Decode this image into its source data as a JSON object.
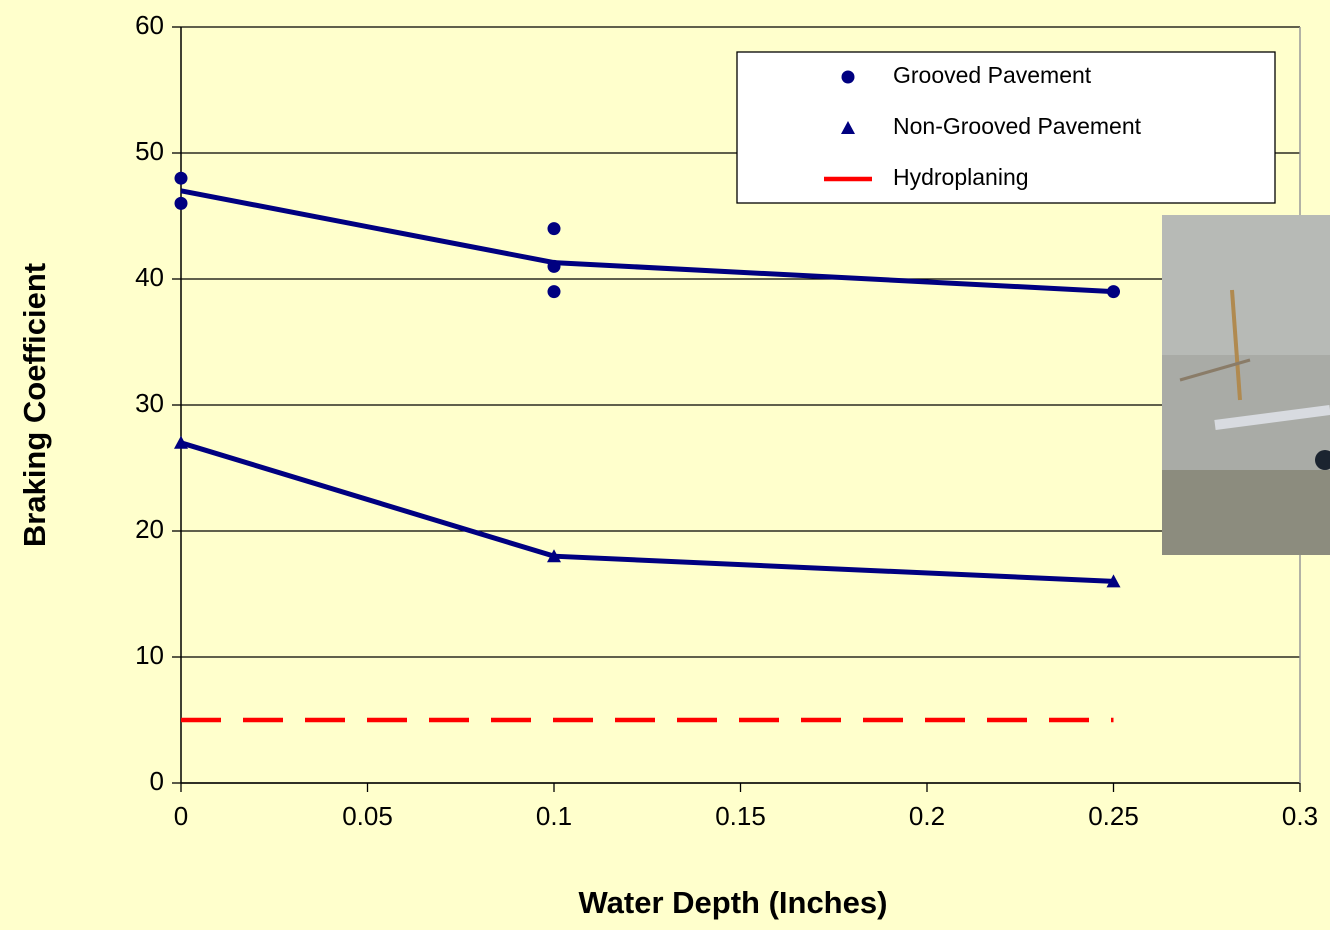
{
  "chart_data": {
    "type": "scatter",
    "x_label": "Water Depth (Inches)",
    "y_label": "Braking Coefficient",
    "xlim": [
      0,
      0.3
    ],
    "ylim": [
      0,
      60
    ],
    "xticks": [
      0,
      0.05,
      0.1,
      0.15,
      0.2,
      0.25,
      0.3
    ],
    "yticks": [
      0,
      10,
      20,
      30,
      40,
      50,
      60
    ],
    "grid": true,
    "legend": "top-right",
    "series": [
      {
        "name": "Grooved Pavement",
        "color": "#000080",
        "marker": "circle",
        "x": [
          0,
          0,
          0.1,
          0.1,
          0.1,
          0.25
        ],
        "y": [
          48,
          46,
          44,
          41,
          39,
          39
        ],
        "line_x": [
          0,
          0.1,
          0.25
        ],
        "line_y": [
          47,
          41.3,
          39
        ]
      },
      {
        "name": "Non-Grooved Pavement",
        "color": "#000080",
        "marker": "triangle",
        "x": [
          0,
          0.1,
          0.25
        ],
        "y": [
          27,
          18,
          16
        ],
        "line_x": [
          0,
          0.1,
          0.25
        ],
        "line_y": [
          27,
          18,
          16
        ]
      },
      {
        "name": "Hydroplaning",
        "color": "#ff0000",
        "marker": "dash",
        "line_x": [
          0,
          0.25
        ],
        "line_y": [
          5,
          5
        ]
      }
    ]
  }
}
